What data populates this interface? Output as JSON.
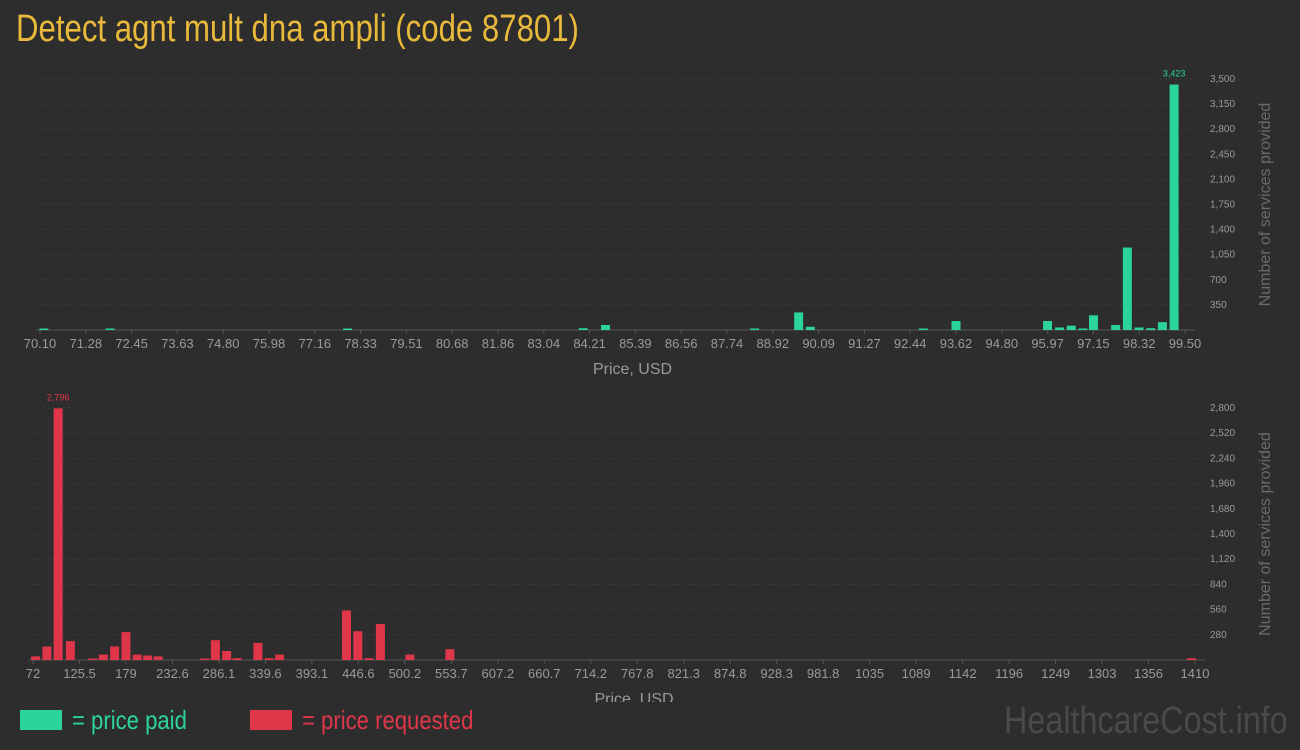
{
  "title": "Detect agnt mult dna ampli (code 87801)",
  "colors": {
    "paid": "#2ad49a",
    "requested": "#e0364a",
    "title": "#e8b93a",
    "background": "#2d2d2d",
    "axis_text": "#9a9a9a"
  },
  "legend": {
    "paid": "= price paid",
    "requested": "= price requested"
  },
  "watermark": "HealthcareCost.info",
  "chart_data": [
    {
      "type": "bar",
      "series_name": "price paid",
      "xlabel": "Price, USD",
      "ylabel": "Number of services provided",
      "x_range": [
        70.1,
        99.5
      ],
      "ylim": [
        0,
        3500
      ],
      "x_ticks": [
        "70.10",
        "71.28",
        "72.45",
        "73.63",
        "74.80",
        "75.98",
        "77.16",
        "78.33",
        "79.51",
        "80.68",
        "81.86",
        "83.04",
        "84.21",
        "85.39",
        "86.56",
        "87.74",
        "88.92",
        "90.09",
        "91.27",
        "92.44",
        "93.62",
        "94.80",
        "95.97",
        "97.15",
        "98.32",
        "99.50"
      ],
      "y_ticks": [
        "350",
        "700",
        "1,050",
        "1,400",
        "1,750",
        "2,100",
        "2,450",
        "2,800",
        "3,150",
        "3,500"
      ],
      "max_label": "3,423",
      "bars": [
        {
          "x": 70.2,
          "value": 8
        },
        {
          "x": 71.9,
          "value": 15
        },
        {
          "x": 78.0,
          "value": 8
        },
        {
          "x": 84.05,
          "value": 25
        },
        {
          "x": 84.62,
          "value": 70
        },
        {
          "x": 88.45,
          "value": 15
        },
        {
          "x": 89.58,
          "value": 245
        },
        {
          "x": 89.88,
          "value": 45
        },
        {
          "x": 92.78,
          "value": 10
        },
        {
          "x": 93.62,
          "value": 125
        },
        {
          "x": 95.97,
          "value": 125
        },
        {
          "x": 96.28,
          "value": 35
        },
        {
          "x": 96.58,
          "value": 60
        },
        {
          "x": 96.88,
          "value": 20
        },
        {
          "x": 97.15,
          "value": 205
        },
        {
          "x": 97.72,
          "value": 70
        },
        {
          "x": 98.02,
          "value": 1150
        },
        {
          "x": 98.32,
          "value": 35
        },
        {
          "x": 98.62,
          "value": 25
        },
        {
          "x": 98.92,
          "value": 110
        },
        {
          "x": 99.22,
          "value": 3423
        }
      ]
    },
    {
      "type": "bar",
      "series_name": "price requested",
      "xlabel": "Price, USD",
      "ylabel": "Number of services provided",
      "x_range": [
        72,
        1410
      ],
      "ylim": [
        0,
        2800
      ],
      "x_ticks": [
        "72",
        "125.5",
        "179",
        "232.6",
        "286.1",
        "339.6",
        "393.1",
        "446.6",
        "500.2",
        "553.7",
        "607.2",
        "660.7",
        "714.2",
        "767.8",
        "821.3",
        "874.8",
        "928.3",
        "981.8",
        "1035",
        "1089",
        "1142",
        "1196",
        "1249",
        "1303",
        "1356",
        "1410"
      ],
      "y_ticks": [
        "280",
        "560",
        "840",
        "1,120",
        "1,400",
        "1,680",
        "1,960",
        "2,240",
        "2,520",
        "2,800"
      ],
      "max_label": "2,796",
      "bars": [
        {
          "x": 75,
          "value": 40
        },
        {
          "x": 88,
          "value": 150
        },
        {
          "x": 101,
          "value": 2796
        },
        {
          "x": 115,
          "value": 210
        },
        {
          "x": 141,
          "value": 15
        },
        {
          "x": 153,
          "value": 60
        },
        {
          "x": 166,
          "value": 150
        },
        {
          "x": 179,
          "value": 310
        },
        {
          "x": 192,
          "value": 60
        },
        {
          "x": 204,
          "value": 50
        },
        {
          "x": 216,
          "value": 40
        },
        {
          "x": 270,
          "value": 15
        },
        {
          "x": 282,
          "value": 220
        },
        {
          "x": 295,
          "value": 100
        },
        {
          "x": 307,
          "value": 20
        },
        {
          "x": 331,
          "value": 190
        },
        {
          "x": 344,
          "value": 20
        },
        {
          "x": 356,
          "value": 60
        },
        {
          "x": 433,
          "value": 550
        },
        {
          "x": 446,
          "value": 320
        },
        {
          "x": 459,
          "value": 20
        },
        {
          "x": 472,
          "value": 400
        },
        {
          "x": 506,
          "value": 60
        },
        {
          "x": 552,
          "value": 120
        },
        {
          "x": 1406,
          "value": 20
        }
      ]
    }
  ]
}
